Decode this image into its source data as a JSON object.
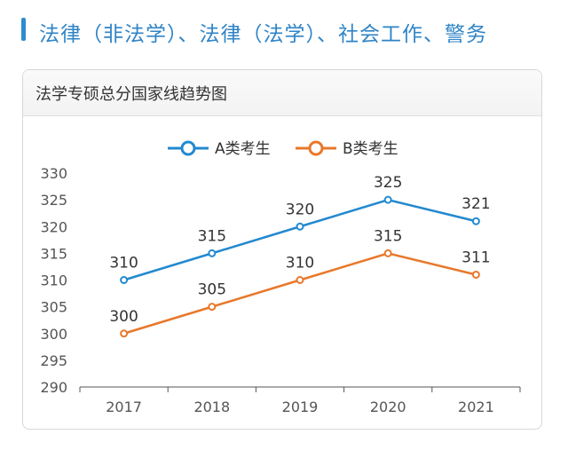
{
  "header": {
    "title": "法律（非法学）、法律（法学）、社会工作、警务"
  },
  "colors": {
    "accent": "#2f84c7",
    "series_a": "#2389cf",
    "series_b": "#e8782b"
  },
  "chart_data": {
    "type": "line",
    "title": "法学专硕总分国家线趋势图",
    "x": [
      "2017",
      "2018",
      "2019",
      "2020",
      "2021"
    ],
    "series": [
      {
        "name": "A类考生",
        "values": [
          310,
          315,
          320,
          325,
          321
        ],
        "color": "#2389cf"
      },
      {
        "name": "B类考生",
        "values": [
          300,
          305,
          310,
          315,
          311
        ],
        "color": "#e8782b"
      }
    ],
    "ylim": [
      290,
      330
    ],
    "yticks": [
      290,
      295,
      300,
      305,
      310,
      315,
      320,
      325,
      330
    ],
    "xlabel": "",
    "ylabel": "",
    "legend": "top-center",
    "grid": false,
    "data_labels": true
  }
}
